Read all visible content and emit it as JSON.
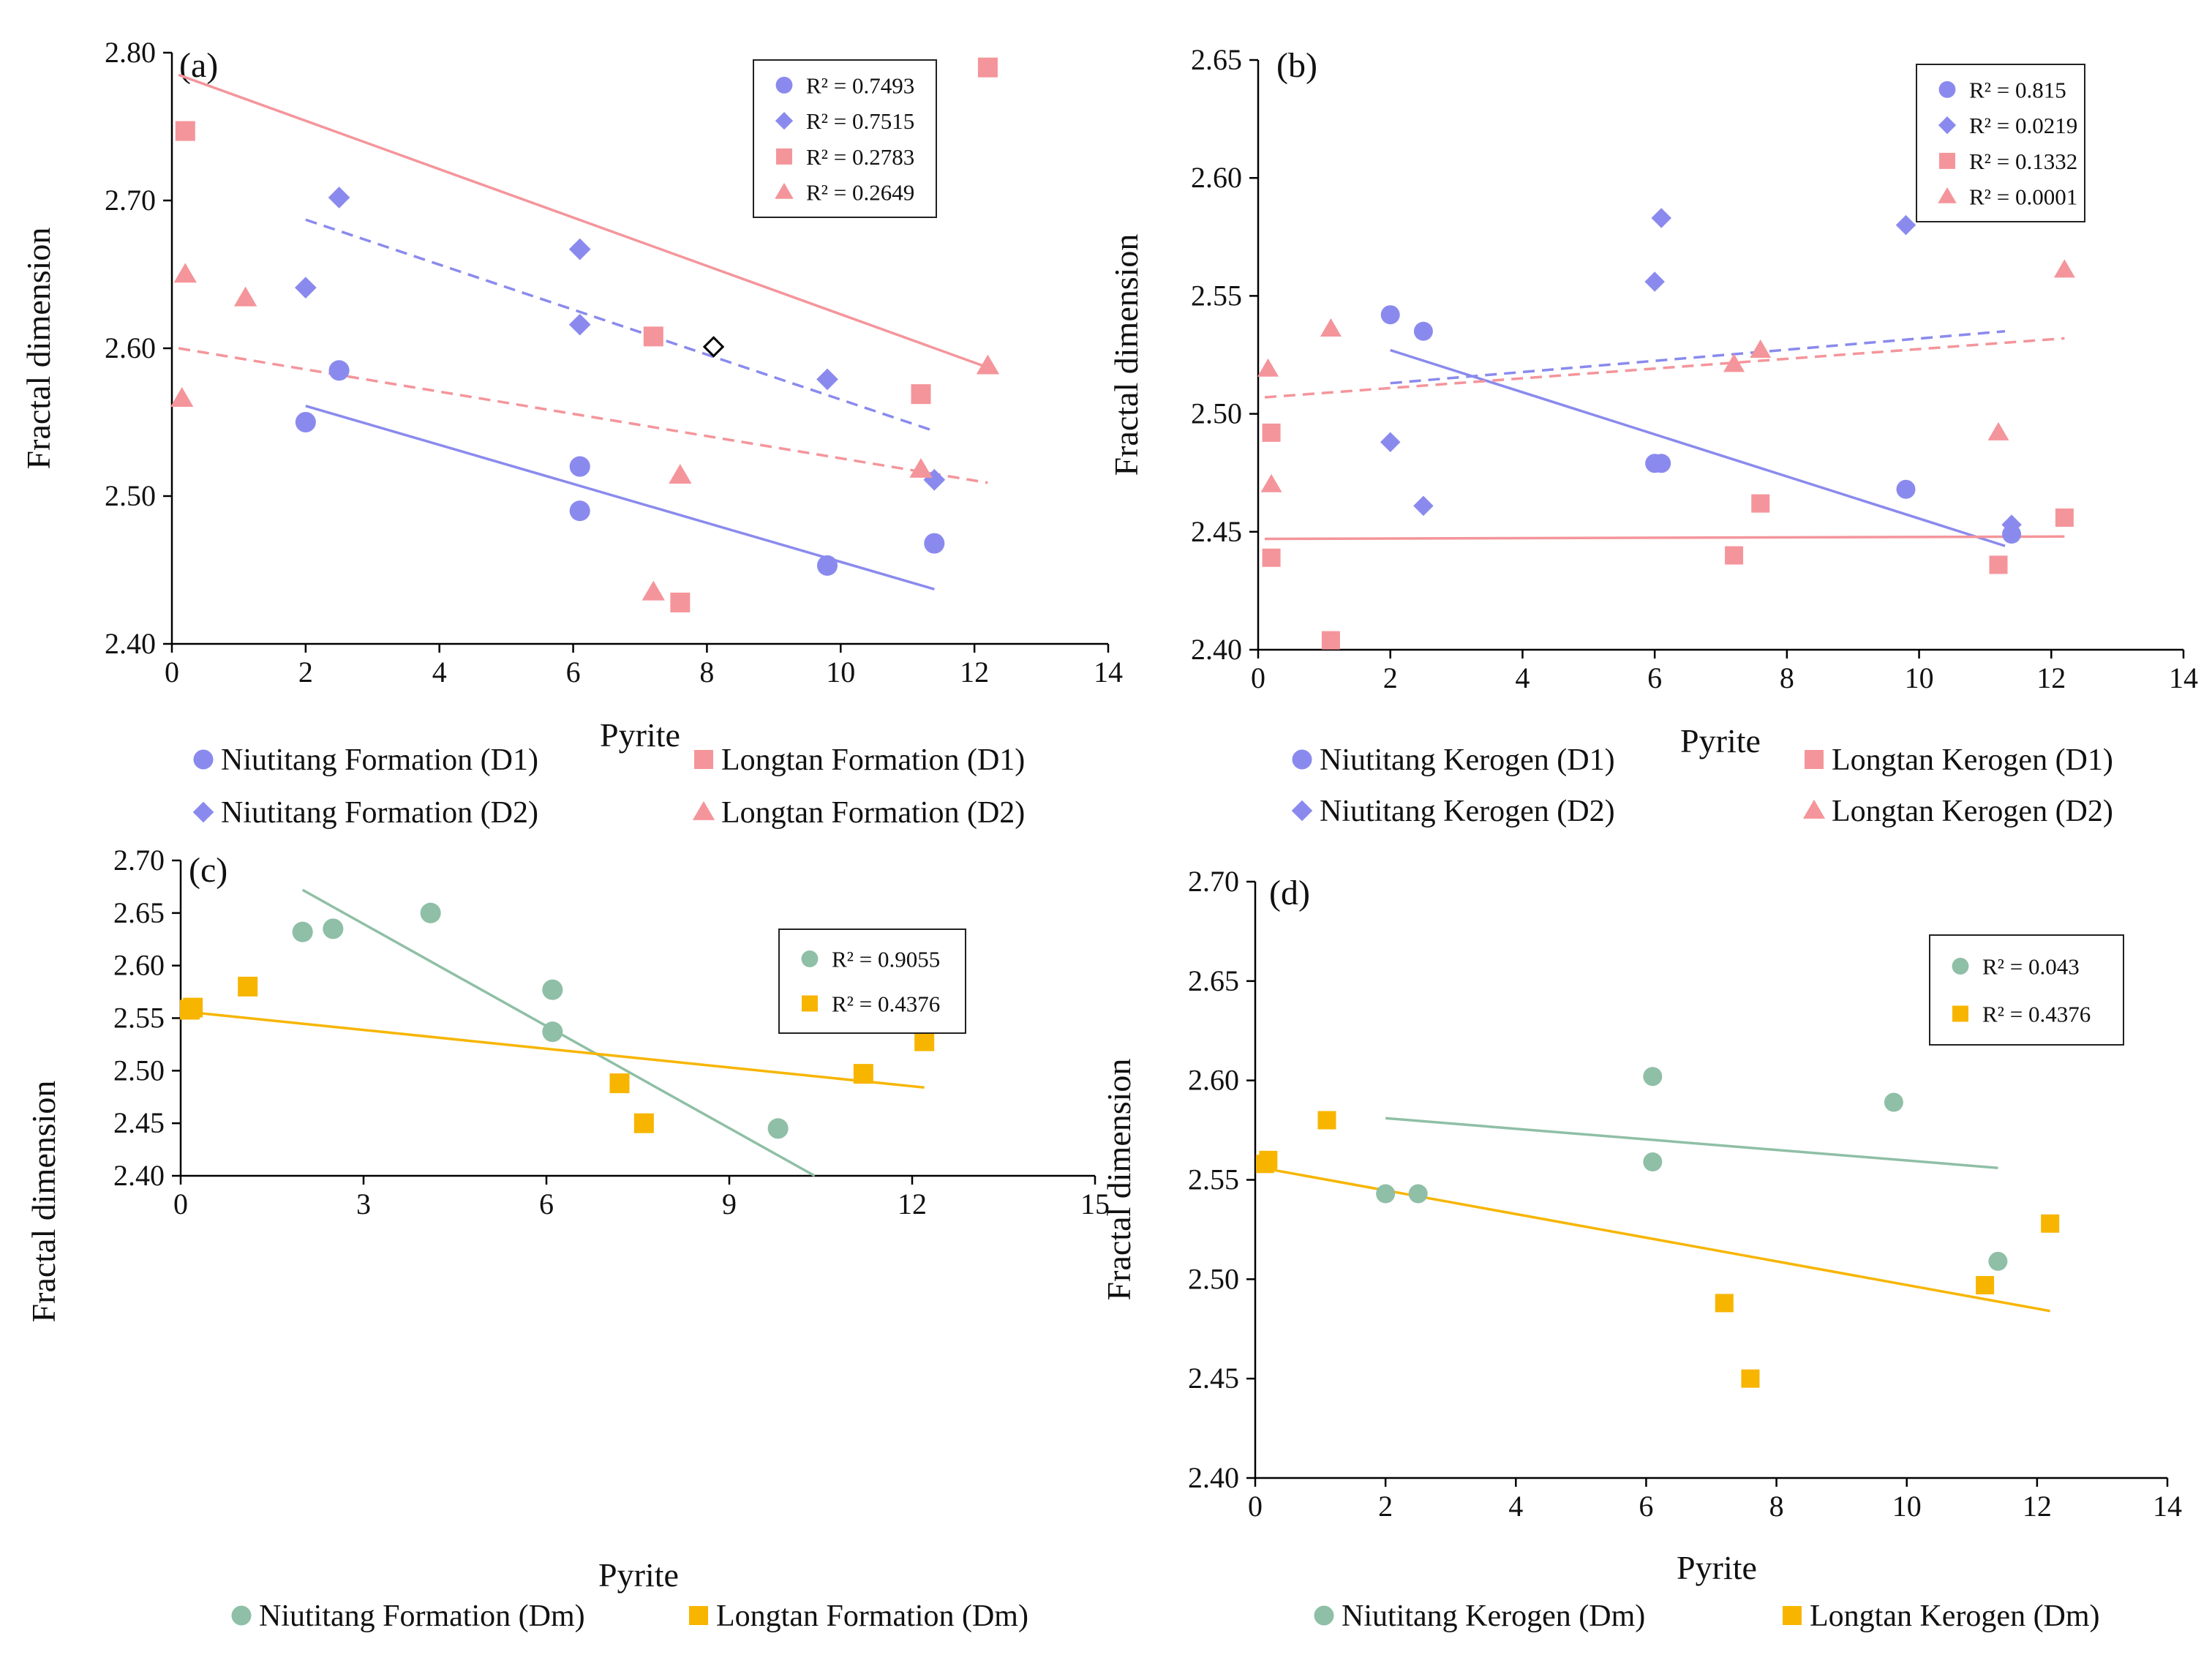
{
  "colors": {
    "nt_blue": "#8a8aee",
    "lt_pink": "#f4959b",
    "nt_green": "#8fbfa6",
    "lt_orange": "#f7b500",
    "axis": "#000000"
  },
  "chart_data": [
    {
      "id": "a",
      "type": "scatter",
      "panel_label": "(a)",
      "xlabel": "Pyrite",
      "ylabel": "Fractal dimension",
      "xlim": [
        0,
        14
      ],
      "ylim": [
        2.4,
        2.8
      ],
      "xticks": [
        0,
        2,
        4,
        6,
        8,
        10,
        12,
        14
      ],
      "yticks": [
        2.4,
        2.5,
        2.6,
        2.7,
        2.8
      ],
      "y_decimals": 2,
      "legend_position": "top-right",
      "series": [
        {
          "name": "Niutitang Formation (D1)",
          "marker": "circle",
          "color": "#8a8aee",
          "x": [
            2.0,
            2.5,
            6.1,
            6.1,
            9.8,
            11.4
          ],
          "y": [
            2.55,
            2.585,
            2.52,
            2.49,
            2.453,
            2.468
          ],
          "r2": "R² = 0.7493",
          "trend": {
            "x1": 2.0,
            "y1": 2.561,
            "x2": 11.4,
            "y2": 2.437,
            "dashed": false
          }
        },
        {
          "name": "Niutitang Formation (D2)",
          "marker": "diamond",
          "color": "#8a8aee",
          "x": [
            2.0,
            2.5,
            6.1,
            6.1,
            9.8,
            11.4
          ],
          "y": [
            2.641,
            2.702,
            2.667,
            2.616,
            2.579,
            2.511
          ],
          "r2": "R² = 0.7515",
          "trend": {
            "x1": 2.0,
            "y1": 2.687,
            "x2": 11.4,
            "y2": 2.544,
            "dashed": true
          }
        },
        {
          "name": "Longtan Formation (D1)",
          "marker": "square",
          "color": "#f4959b",
          "x": [
            0.2,
            7.2,
            7.6,
            11.2,
            12.2
          ],
          "y": [
            2.747,
            2.608,
            2.428,
            2.569,
            2.79
          ],
          "r2": "R² = 0.2783",
          "trend": {
            "x1": 0.1,
            "y1": 2.785,
            "x2": 12.2,
            "y2": 2.587,
            "dashed": false
          }
        },
        {
          "name": "Longtan Formation (D2)",
          "marker": "triangle",
          "color": "#f4959b",
          "x": [
            0.15,
            0.2,
            1.1,
            7.2,
            7.6,
            11.2,
            12.2
          ],
          "y": [
            2.566,
            2.65,
            2.634,
            2.435,
            2.514,
            2.518,
            2.588
          ],
          "r2": "R² = 0.2649",
          "trend": {
            "x1": 0.1,
            "y1": 2.6,
            "x2": 12.2,
            "y2": 2.509,
            "dashed": true
          }
        }
      ],
      "outline_points": [
        {
          "x": 8.1,
          "y": 2.601,
          "marker": "diamond"
        }
      ]
    },
    {
      "id": "b",
      "type": "scatter",
      "panel_label": "(b)",
      "xlabel": "Pyrite",
      "ylabel": "Fractal dimension",
      "xlim": [
        0,
        14
      ],
      "ylim": [
        2.4,
        2.65
      ],
      "xticks": [
        0,
        2,
        4,
        6,
        8,
        10,
        12,
        14
      ],
      "yticks": [
        2.4,
        2.45,
        2.5,
        2.55,
        2.6,
        2.65
      ],
      "y_decimals": 2,
      "legend_position": "top-right",
      "series": [
        {
          "name": "Niutitang Kerogen (D1)",
          "marker": "circle",
          "color": "#8a8aee",
          "x": [
            2.0,
            2.5,
            6.0,
            6.1,
            9.8,
            11.4
          ],
          "y": [
            2.542,
            2.535,
            2.479,
            2.479,
            2.468,
            2.449
          ],
          "r2": "R² = 0.815",
          "trend": {
            "x1": 2.0,
            "y1": 2.527,
            "x2": 11.3,
            "y2": 2.444,
            "dashed": false
          }
        },
        {
          "name": "Niutitang Kerogen (D2)",
          "marker": "diamond",
          "color": "#8a8aee",
          "x": [
            2.0,
            2.5,
            6.0,
            6.1,
            9.8,
            11.4
          ],
          "y": [
            2.488,
            2.461,
            2.556,
            2.583,
            2.58,
            2.453
          ],
          "r2": "R² = 0.0219",
          "trend": {
            "x1": 2.0,
            "y1": 2.513,
            "x2": 11.3,
            "y2": 2.535,
            "dashed": true
          }
        },
        {
          "name": "Longtan Kerogen (D1)",
          "marker": "square",
          "color": "#f4959b",
          "x": [
            0.2,
            0.2,
            1.1,
            7.2,
            7.6,
            11.2,
            12.2
          ],
          "y": [
            2.492,
            2.439,
            2.404,
            2.44,
            2.462,
            2.436,
            2.456
          ],
          "r2": "R² = 0.1332",
          "trend": {
            "x1": 0.1,
            "y1": 2.447,
            "x2": 12.2,
            "y2": 2.448,
            "dashed": false
          }
        },
        {
          "name": "Longtan Kerogen (D2)",
          "marker": "triangle",
          "color": "#f4959b",
          "x": [
            0.15,
            0.2,
            1.1,
            7.2,
            7.6,
            11.2,
            12.2
          ],
          "y": [
            2.519,
            2.47,
            2.536,
            2.521,
            2.527,
            2.492,
            2.561
          ],
          "r2": "R² = 0.0001",
          "trend": {
            "x1": 0.1,
            "y1": 2.507,
            "x2": 12.2,
            "y2": 2.532,
            "dashed": true
          }
        }
      ]
    },
    {
      "id": "c",
      "type": "scatter",
      "panel_label": "(c)",
      "xlabel": "Pyrite",
      "ylabel": "Fractal dimension",
      "xlim": [
        0,
        15
      ],
      "ylim": [
        2.4,
        2.7
      ],
      "xticks": [
        0,
        3,
        6,
        9,
        12,
        15
      ],
      "yticks": [
        2.4,
        2.45,
        2.5,
        2.55,
        2.6,
        2.65,
        2.7
      ],
      "y_decimals": 2,
      "legend_position": "top-right",
      "series": [
        {
          "name": "Niutitang Formation (Dm)",
          "marker": "circle",
          "color": "#8fbfa6",
          "x": [
            2.0,
            2.5,
            4.1,
            6.1,
            6.1,
            9.8
          ],
          "y": [
            2.632,
            2.635,
            2.65,
            2.577,
            2.537,
            2.445
          ],
          "r2": "R² = 0.9055",
          "trend": {
            "x1": 2.0,
            "y1": 2.672,
            "x2": 10.4,
            "y2": 2.4,
            "dashed": false
          }
        },
        {
          "name": "Longtan Formation (Dm)",
          "marker": "square",
          "color": "#f7b500",
          "x": [
            0.15,
            0.2,
            1.1,
            7.2,
            7.6,
            11.2,
            12.2
          ],
          "y": [
            2.558,
            2.56,
            2.58,
            2.488,
            2.45,
            2.497,
            2.528
          ],
          "r2": "R² = 0.4376",
          "trend": {
            "x1": 0.1,
            "y1": 2.556,
            "x2": 12.2,
            "y2": 2.484,
            "dashed": false
          }
        }
      ]
    },
    {
      "id": "d",
      "type": "scatter",
      "panel_label": "(d)",
      "xlabel": "Pyrite",
      "ylabel": "Fractal dimension",
      "xlim": [
        0,
        14
      ],
      "ylim": [
        2.4,
        2.7
      ],
      "xticks": [
        0,
        2,
        4,
        6,
        8,
        10,
        12,
        14
      ],
      "yticks": [
        2.4,
        2.45,
        2.5,
        2.55,
        2.6,
        2.65,
        2.7
      ],
      "y_decimals": 2,
      "legend_position": "top-right",
      "series": [
        {
          "name": "Niutitang Kerogen (Dm)",
          "marker": "circle",
          "color": "#8fbfa6",
          "x": [
            2.0,
            2.5,
            6.1,
            6.1,
            9.8,
            11.4
          ],
          "y": [
            2.543,
            2.543,
            2.602,
            2.559,
            2.589,
            2.509
          ],
          "r2": "R² = 0.043",
          "trend": {
            "x1": 2.0,
            "y1": 2.581,
            "x2": 11.4,
            "y2": 2.556,
            "dashed": false
          }
        },
        {
          "name": "Longtan Kerogen (Dm)",
          "marker": "square",
          "color": "#f7b500",
          "x": [
            0.15,
            0.2,
            1.1,
            7.2,
            7.6,
            11.2,
            12.2
          ],
          "y": [
            2.558,
            2.56,
            2.58,
            2.488,
            2.45,
            2.497,
            2.528
          ],
          "r2": "R² = 0.4376",
          "trend": {
            "x1": 0.1,
            "y1": 2.556,
            "x2": 12.2,
            "y2": 2.484,
            "dashed": false
          }
        }
      ]
    }
  ]
}
